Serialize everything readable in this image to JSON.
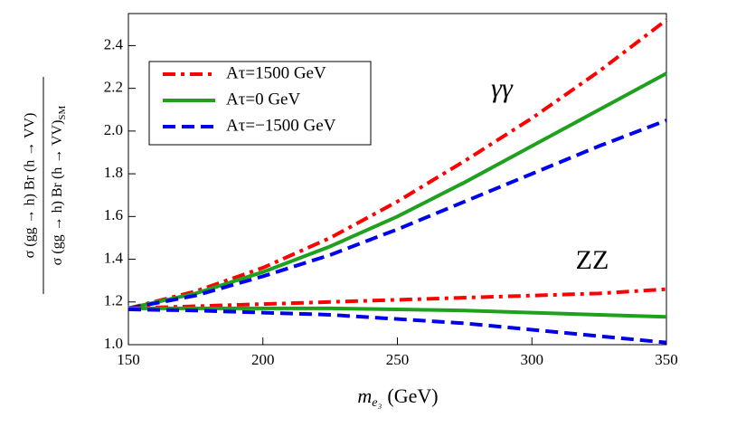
{
  "chart_data": {
    "type": "line",
    "x_label": {
      "main": "m",
      "sub": "e₃",
      "unit": "(GeV)"
    },
    "y_label": {
      "numerator": "σ (gg → h) Br (h → VV)",
      "denominator": "σ (gg → h) Br (h → VV)",
      "denominator_sub": "SM"
    },
    "annotations": [
      "γγ",
      "ZZ"
    ],
    "x": [
      150,
      175,
      200,
      225,
      250,
      275,
      300,
      325,
      350
    ],
    "xlim": [
      150,
      350
    ],
    "xticks": [
      150,
      200,
      250,
      300,
      350
    ],
    "ylim": [
      1.0,
      2.55
    ],
    "yticks": [
      {
        "value": 1.0,
        "label": "1.0"
      },
      1.2,
      1.4,
      1.6,
      1.8,
      {
        "value": 2.0,
        "label": "2.0"
      },
      2.2,
      2.4
    ],
    "legend": "upper left",
    "series": [
      {
        "name": "Aτ=1500 GeV",
        "color": "#ff0000",
        "dash": "dashdot",
        "values": [
          1.17,
          1.25,
          1.36,
          1.5,
          1.67,
          1.86,
          2.06,
          2.28,
          2.52
        ]
      },
      {
        "name": "Aτ=0 GeV",
        "color": "#1fa01f",
        "dash": "solid",
        "values": [
          1.17,
          1.24,
          1.34,
          1.46,
          1.6,
          1.76,
          1.93,
          2.1,
          2.27
        ]
      },
      {
        "name": "Aτ=−1500 GeV",
        "color": "#0000ee",
        "dash": "dashed",
        "values": [
          1.17,
          1.23,
          1.32,
          1.42,
          1.54,
          1.67,
          1.8,
          1.93,
          2.05
        ]
      },
      {
        "color": "#ff0000",
        "dash": "dashdot",
        "values": [
          1.17,
          1.18,
          1.19,
          1.2,
          1.21,
          1.22,
          1.23,
          1.24,
          1.26
        ]
      },
      {
        "color": "#1fa01f",
        "dash": "solid",
        "values": [
          1.17,
          1.17,
          1.17,
          1.17,
          1.165,
          1.16,
          1.15,
          1.14,
          1.13
        ]
      },
      {
        "color": "#0000ee",
        "dash": "dashed",
        "values": [
          1.165,
          1.16,
          1.15,
          1.14,
          1.12,
          1.1,
          1.07,
          1.04,
          1.01
        ]
      }
    ]
  }
}
